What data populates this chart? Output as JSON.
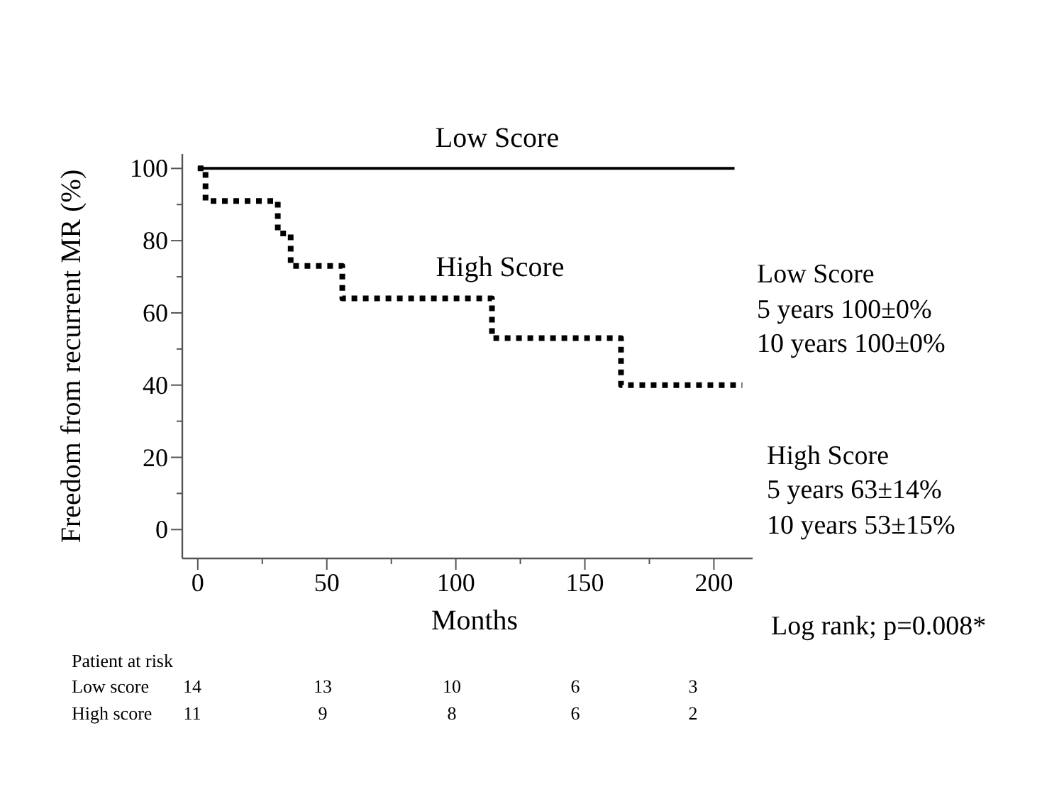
{
  "chart_data": {
    "type": "step",
    "xlabel": "Months",
    "ylabel": "Freedom from recurrent MR (%)",
    "xlim": [
      -6,
      215
    ],
    "ylim": [
      -8,
      104
    ],
    "xticks": [
      0,
      {
        "value": 25,
        "label": null
      },
      50,
      {
        "value": 75,
        "label": null
      },
      100,
      {
        "value": 125,
        "label": null
      },
      150,
      {
        "value": 175,
        "label": null
      },
      200
    ],
    "yticks": [
      0,
      {
        "value": 10,
        "label": null
      },
      20,
      {
        "value": 30,
        "label": null
      },
      40,
      {
        "value": 50,
        "label": null
      },
      60,
      {
        "value": 70,
        "label": null
      },
      80,
      {
        "value": 90,
        "label": null
      },
      100
    ],
    "series": [
      {
        "color": "#000000",
        "line_style": "solid",
        "x": [
          0,
          208
        ],
        "values": [
          100,
          100
        ]
      },
      {
        "color": "#000000",
        "line_style": "dotted",
        "x": [
          0,
          3,
          31,
          36,
          56,
          114,
          164,
          211
        ],
        "values": [
          100,
          91,
          82,
          73,
          64,
          53,
          40,
          40
        ]
      }
    ],
    "annotations": [
      "Low Score",
      "High Score",
      "Low Score",
      "5 years    100±0%",
      "10 years    100±0%",
      "High Score",
      "5  years   63±14%",
      "10 years    53±15%",
      "Log rank; p=0.008*",
      "Patient at risk",
      "Low score",
      "14",
      "13",
      "10",
      "6",
      "3",
      "High score",
      "11",
      "9",
      "8",
      "6",
      "2"
    ]
  }
}
